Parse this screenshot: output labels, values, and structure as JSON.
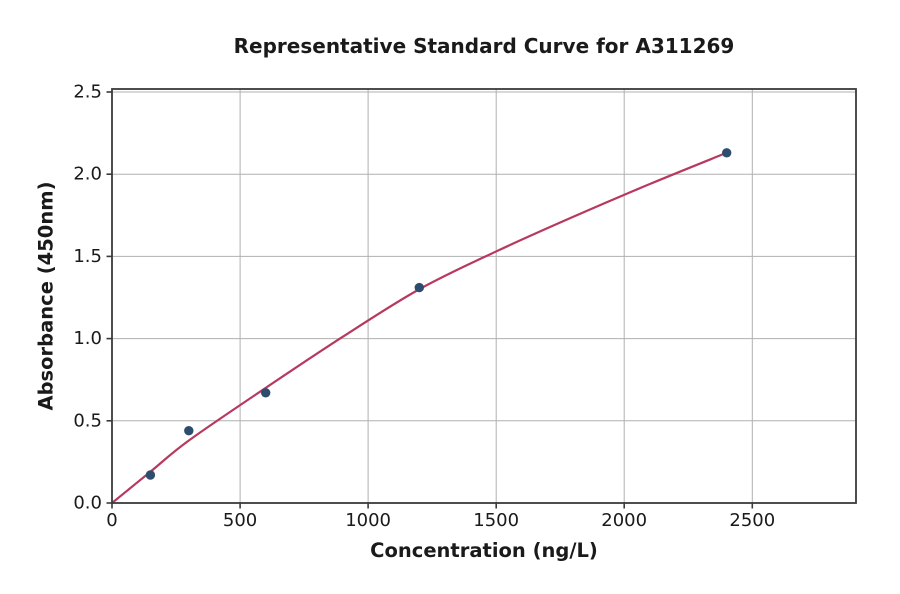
{
  "figure": {
    "background": "#ffffff"
  },
  "chart_data": {
    "type": "scatter",
    "title": "Representative Standard Curve for A311269",
    "xlabel": "Concentration (ng/L)",
    "ylabel": "Absorbance (450nm)",
    "xlim": [
      0,
      2905
    ],
    "ylim": [
      0,
      2.518
    ],
    "xticks": [
      0,
      500,
      1000,
      1500,
      2000,
      2500
    ],
    "xtick_labels": [
      "0",
      "500",
      "1000",
      "1500",
      "2000",
      "2500"
    ],
    "yticks": [
      0,
      0.5,
      1.0,
      1.5,
      2.0,
      2.5
    ],
    "ytick_labels": [
      "0.0",
      "0.5",
      "1.0",
      "1.5",
      "2.0",
      "2.5"
    ],
    "grid": true,
    "legend": "none",
    "series": [
      {
        "name": "fitted-curve",
        "kind": "line",
        "color": "#b8395e",
        "line_width": 2.2,
        "points": [
          [
            0,
            0.0
          ],
          [
            150,
            0.19
          ],
          [
            300,
            0.38
          ],
          [
            600,
            0.7
          ],
          [
            900,
            1.01
          ],
          [
            1200,
            1.3
          ],
          [
            1500,
            1.53
          ],
          [
            1800,
            1.74
          ],
          [
            2100,
            1.94
          ],
          [
            2400,
            2.13
          ]
        ]
      },
      {
        "name": "standard-points",
        "kind": "scatter",
        "color": "#2e4d6e",
        "marker_radius": 4.7,
        "points": [
          [
            150,
            0.17
          ],
          [
            300,
            0.44
          ],
          [
            600,
            0.67
          ],
          [
            1200,
            1.31
          ],
          [
            2400,
            2.13
          ]
        ]
      }
    ],
    "colors": {
      "grid": "#b0b0b0",
      "spine": "#3a3a3a",
      "text": "#1a1a1a"
    }
  }
}
